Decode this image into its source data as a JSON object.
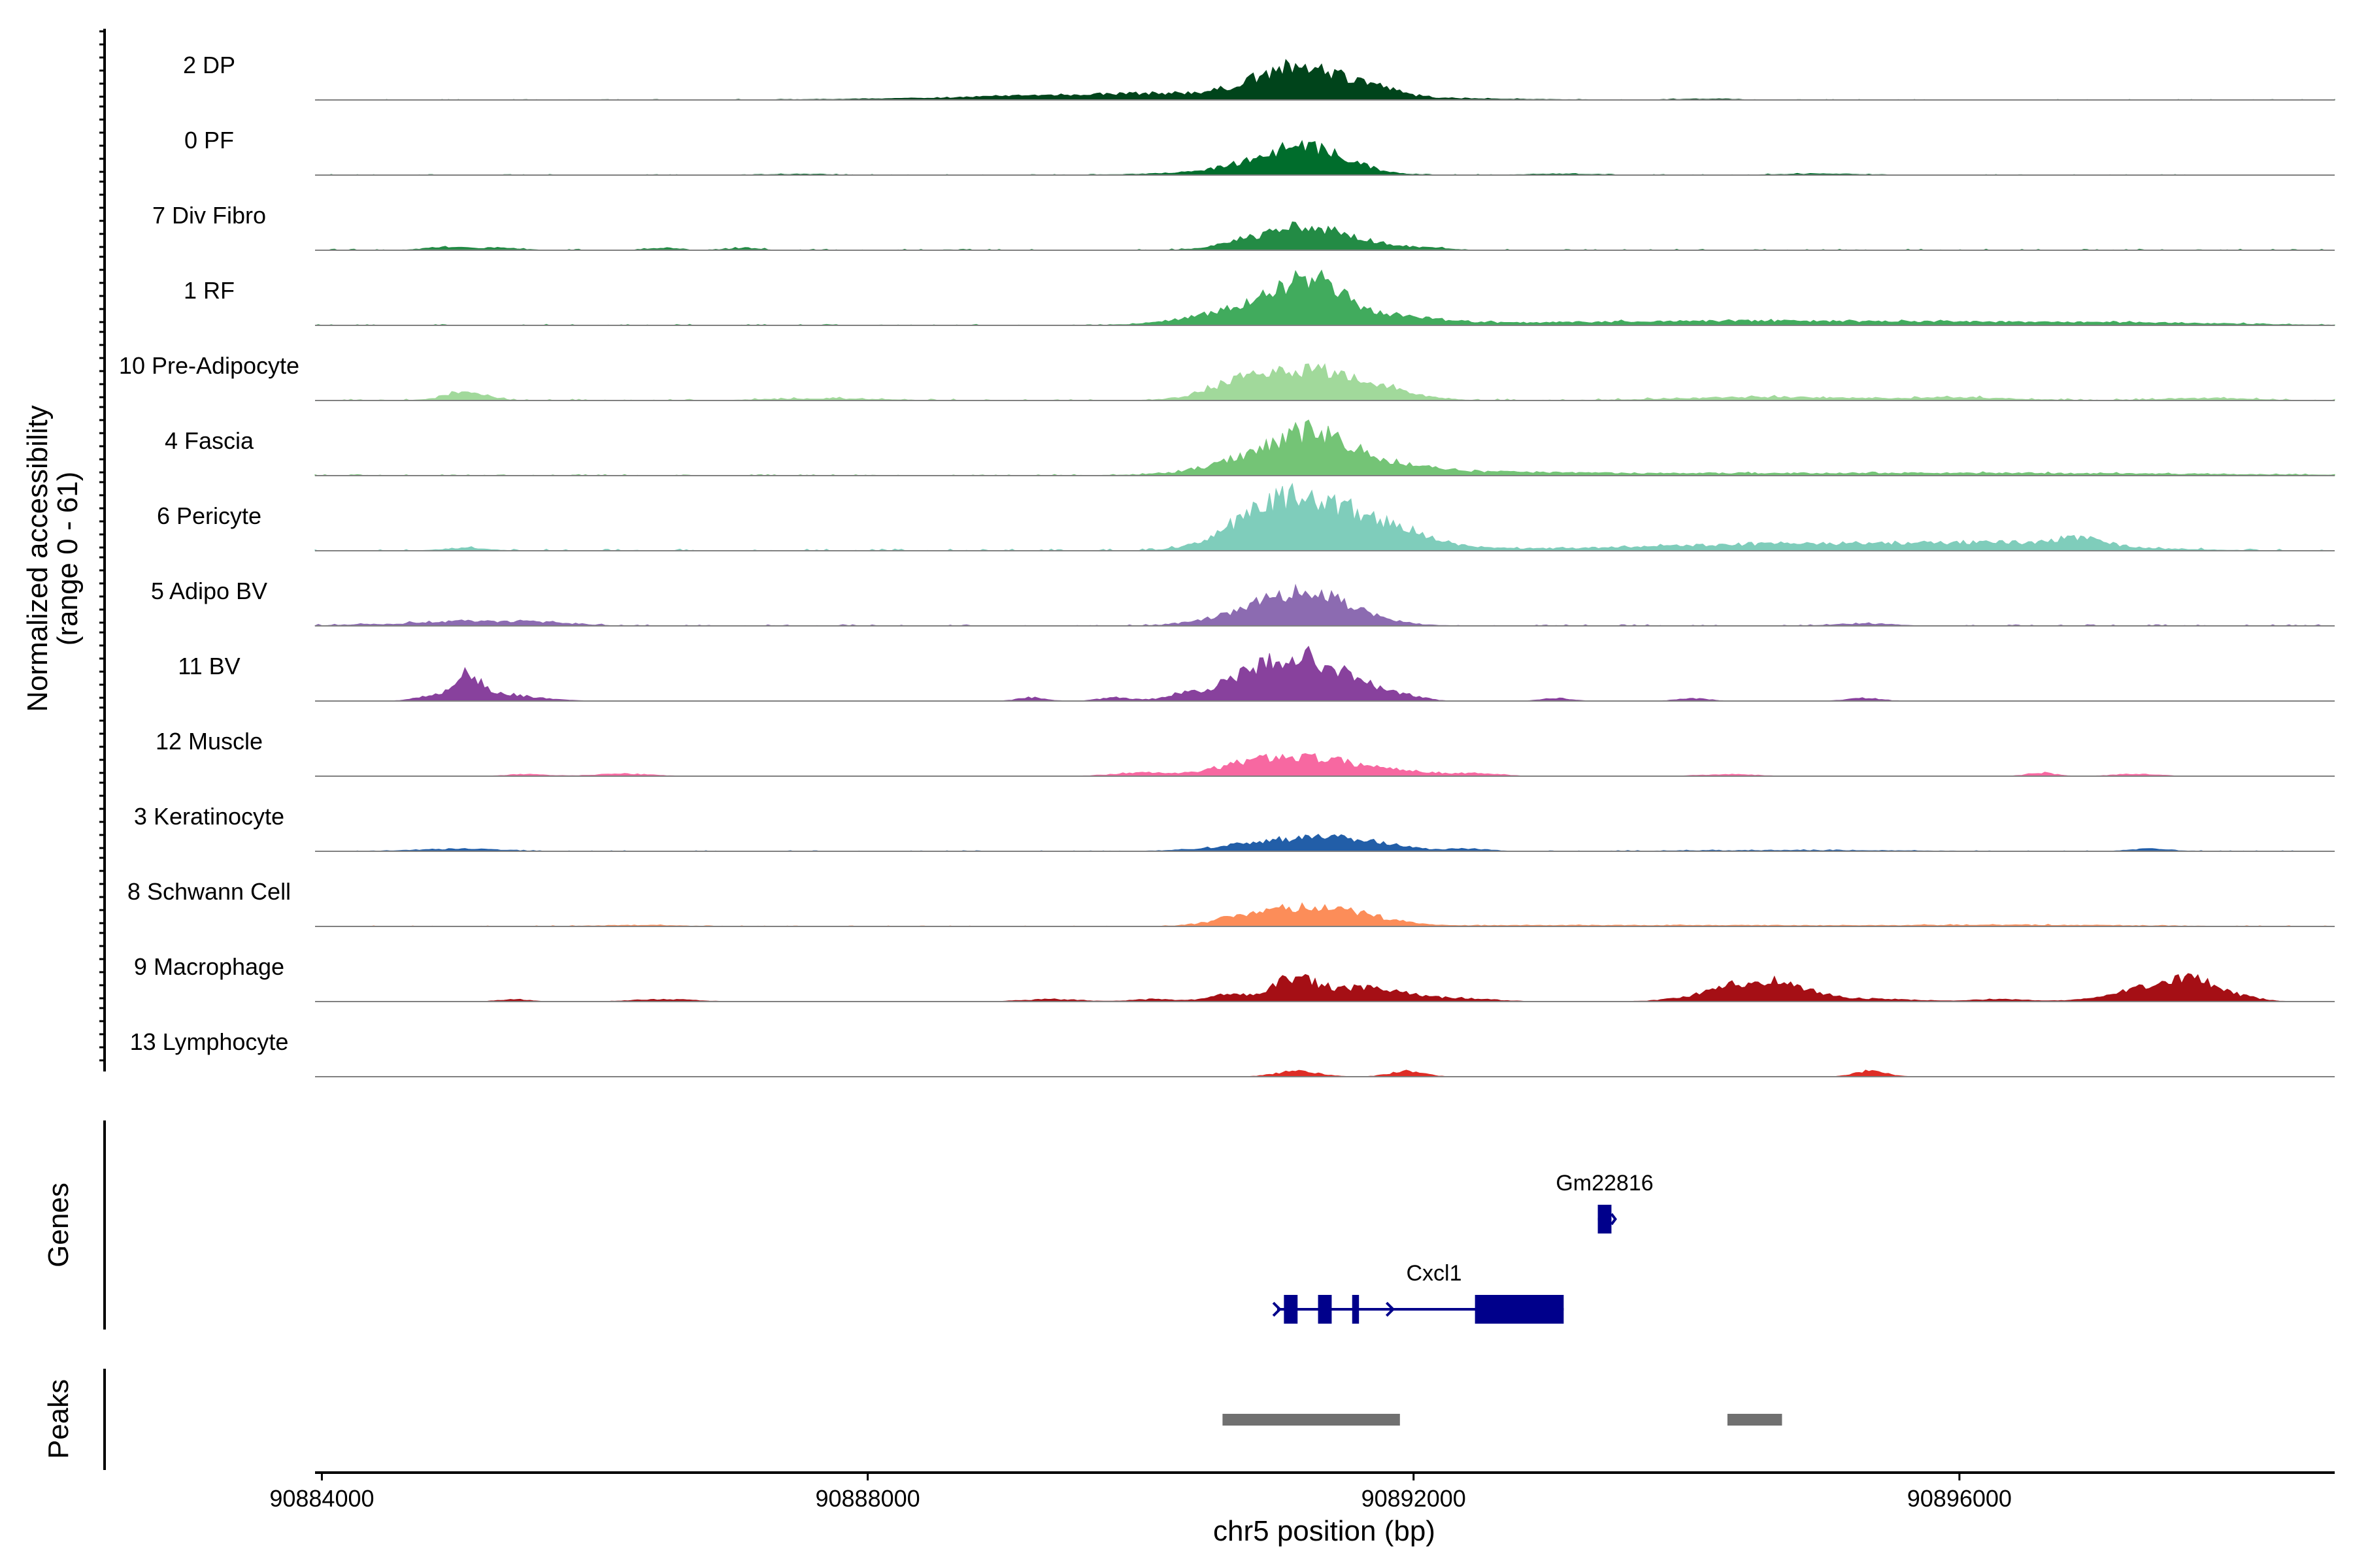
{
  "chart_data": {
    "type": "area",
    "chromosome": "chr5",
    "xlabel": "chr5 position (bp)",
    "xlim": [
      90883950,
      90898750
    ],
    "x_ticks": [
      90884000,
      90888000,
      90892000,
      90896000
    ],
    "x_tick_labels": [
      "90884000",
      "90888000",
      "90892000",
      "90896000"
    ],
    "coverage_ylabel_line1": "Normalized accessibility",
    "coverage_ylabel_line2": "(range 0 - 61)",
    "ylim": [
      0,
      61
    ],
    "tracks": [
      {
        "name": "2 DP",
        "color": "#00441b",
        "peaks": [
          [
            90890300,
            6.0,
            1200
          ],
          [
            90891000,
            15.0,
            250
          ],
          [
            90891300,
            13.0,
            250
          ],
          [
            90891550,
            6.0,
            250
          ],
          [
            90891750,
            3.0,
            150
          ],
          [
            90894150,
            0.8,
            200
          ]
        ],
        "noise": 0.25
      },
      {
        "name": "0 PF",
        "color": "#006d2c",
        "peaks": [
          [
            90891050,
            14.0,
            280
          ],
          [
            90891350,
            12.0,
            250
          ],
          [
            90890850,
            4.0,
            500
          ],
          [
            90893100,
            1.0,
            250
          ],
          [
            90895000,
            1.0,
            300
          ],
          [
            90887500,
            0.8,
            200
          ]
        ],
        "noise": 0.3
      },
      {
        "name": "7 Div Fibro",
        "color": "#238b45",
        "peaks": [
          [
            90891050,
            14.0,
            250
          ],
          [
            90891400,
            12.0,
            250
          ],
          [
            90890700,
            3.0,
            200
          ],
          [
            90891800,
            2.0,
            150
          ],
          [
            90892100,
            2.0,
            150
          ],
          [
            90884900,
            2.5,
            150
          ],
          [
            90886500,
            2.0,
            100
          ],
          [
            90887100,
            2.0,
            100
          ],
          [
            90885300,
            2.0,
            150
          ]
        ],
        "noise": 0.5
      },
      {
        "name": "1 RF",
        "color": "#41ab5d",
        "peaks": [
          [
            90890900,
            18.0,
            400
          ],
          [
            90891250,
            28.0,
            200
          ],
          [
            90891700,
            8.0,
            400
          ],
          [
            90893300,
            2.0,
            1200
          ],
          [
            90894700,
            2.5,
            1000
          ],
          [
            90896300,
            2.0,
            800
          ],
          [
            90897500,
            1.5,
            700
          ]
        ],
        "noise": 0.5
      },
      {
        "name": "10 Pre-Adipocyte",
        "color": "#a1d99b",
        "peaks": [
          [
            90891000,
            18.0,
            300
          ],
          [
            90891400,
            16.0,
            300
          ],
          [
            90890700,
            8.0,
            250
          ],
          [
            90891800,
            6.0,
            250
          ],
          [
            90885050,
            7.0,
            150
          ],
          [
            90894600,
            3.0,
            600
          ],
          [
            90896000,
            2.5,
            400
          ],
          [
            90897800,
            2.0,
            300
          ],
          [
            90887700,
            1.5,
            400
          ]
        ],
        "noise": 0.7
      },
      {
        "name": "4 Fascia",
        "color": "#74c476",
        "peaks": [
          [
            90890900,
            16.0,
            350
          ],
          [
            90891250,
            24.0,
            250
          ],
          [
            90891700,
            9.0,
            350
          ],
          [
            90892200,
            2.0,
            800
          ],
          [
            90893800,
            1.5,
            2000
          ],
          [
            90896500,
            1.5,
            1500
          ]
        ],
        "noise": 0.5
      },
      {
        "name": "6 Pericyte",
        "color": "#7fcdbb",
        "peaks": [
          [
            90891050,
            30.0,
            300
          ],
          [
            90891450,
            28.0,
            350
          ],
          [
            90890700,
            8.0,
            250
          ],
          [
            90891900,
            8.0,
            250
          ],
          [
            90892300,
            2.0,
            300
          ],
          [
            90894900,
            6.0,
            1200
          ],
          [
            90896500,
            5.0,
            600
          ],
          [
            90896900,
            6.0,
            150
          ],
          [
            90885050,
            2.5,
            150
          ]
        ],
        "noise": 0.8
      },
      {
        "name": "5 Adipo BV",
        "color": "#8c6bb1",
        "peaks": [
          [
            90891200,
            30.0,
            350
          ],
          [
            90890600,
            3.0,
            250
          ],
          [
            90885000,
            4.0,
            300
          ],
          [
            90885600,
            3.0,
            250
          ],
          [
            90884300,
            1.0,
            200
          ],
          [
            90895300,
            2.0,
            200
          ]
        ],
        "noise": 0.6
      },
      {
        "name": "11 BV",
        "color": "#88419d",
        "peaks": [
          [
            90891200,
            32.0,
            300
          ],
          [
            90890800,
            14.0,
            350
          ],
          [
            90891700,
            6.0,
            200
          ],
          [
            90885050,
            22.0,
            100
          ],
          [
            90885300,
            6.0,
            250
          ],
          [
            90884750,
            3.0,
            100
          ],
          [
            90889200,
            3.0,
            100
          ],
          [
            90889800,
            3.0,
            100
          ],
          [
            90890300,
            2.0,
            80
          ],
          [
            90893050,
            2.5,
            100
          ],
          [
            90895300,
            2.5,
            120
          ],
          [
            90894050,
            2.0,
            120
          ],
          [
            90892000,
            2.0,
            100
          ]
        ],
        "noise": 0.0
      },
      {
        "name": "12 Muscle",
        "color": "#f768a1",
        "peaks": [
          [
            90891200,
            16.0,
            350
          ],
          [
            90890750,
            6.0,
            250
          ],
          [
            90891900,
            4.0,
            300
          ],
          [
            90890000,
            3.0,
            200
          ],
          [
            90886200,
            2.0,
            200
          ],
          [
            90885500,
            1.5,
            150
          ],
          [
            90892500,
            2.0,
            150
          ],
          [
            90894300,
            1.5,
            200
          ],
          [
            90897300,
            2.0,
            150
          ],
          [
            90896600,
            3.0,
            100
          ]
        ],
        "noise": 0.0
      },
      {
        "name": "3 Keratinocyte",
        "color": "#225ea8",
        "peaks": [
          [
            90891100,
            10.0,
            400
          ],
          [
            90891600,
            6.0,
            300
          ],
          [
            90885000,
            2.0,
            300
          ],
          [
            90897400,
            2.0,
            150
          ],
          [
            90892400,
            2.0,
            150
          ],
          [
            90894800,
            0.8,
            800
          ]
        ],
        "noise": 0.3
      },
      {
        "name": "8 Schwann Cell",
        "color": "#fc8d59",
        "peaks": [
          [
            90891100,
            15.0,
            300
          ],
          [
            90891600,
            8.0,
            250
          ],
          [
            90890700,
            4.0,
            200
          ],
          [
            90893600,
            1.0,
            1500
          ],
          [
            90896500,
            1.0,
            800
          ],
          [
            90886300,
            1.0,
            300
          ]
        ],
        "noise": 0.3
      },
      {
        "name": "9 Macrophage",
        "color": "#a50f15",
        "peaks": [
          [
            90891100,
            16.0,
            150
          ],
          [
            90891450,
            10.0,
            300
          ],
          [
            90890650,
            6.0,
            150
          ],
          [
            90891800,
            5.0,
            200
          ],
          [
            90892300,
            3.0,
            250
          ],
          [
            90894600,
            18.0,
            280
          ],
          [
            90894200,
            4.0,
            250
          ],
          [
            90897650,
            20.0,
            250
          ],
          [
            90897250,
            5.0,
            250
          ],
          [
            90885400,
            2.0,
            100
          ],
          [
            90886500,
            2.0,
            200
          ],
          [
            90889350,
            2.0,
            200
          ],
          [
            90890100,
            2.0,
            150
          ],
          [
            90895400,
            2.0,
            300
          ],
          [
            90896300,
            2.0,
            200
          ],
          [
            90898150,
            1.0,
            100
          ]
        ],
        "noise": 0.0
      },
      {
        "name": "13 Lymphocyte",
        "color": "#de2d26",
        "peaks": [
          [
            90891150,
            5.0,
            150
          ],
          [
            90891950,
            5.0,
            120
          ],
          [
            90895350,
            5.0,
            110
          ]
        ],
        "noise": 0.0
      }
    ],
    "genes_label": "Genes",
    "genes": [
      {
        "name": "Gm22816",
        "strand": "+",
        "start": 90893350,
        "end": 90893450,
        "exons": [
          [
            90893350,
            90893450
          ]
        ]
      },
      {
        "name": "Cxcl1",
        "strand": "+",
        "start": 90891000,
        "end": 90893100,
        "exons": [
          [
            90891050,
            90891150
          ],
          [
            90891300,
            90891400
          ],
          [
            90891550,
            90891600
          ],
          [
            90892450,
            90893100
          ]
        ]
      }
    ],
    "peaks_label": "Peaks",
    "peak_regions": [
      [
        90890600,
        90891900
      ],
      [
        90894300,
        90894700
      ]
    ]
  }
}
